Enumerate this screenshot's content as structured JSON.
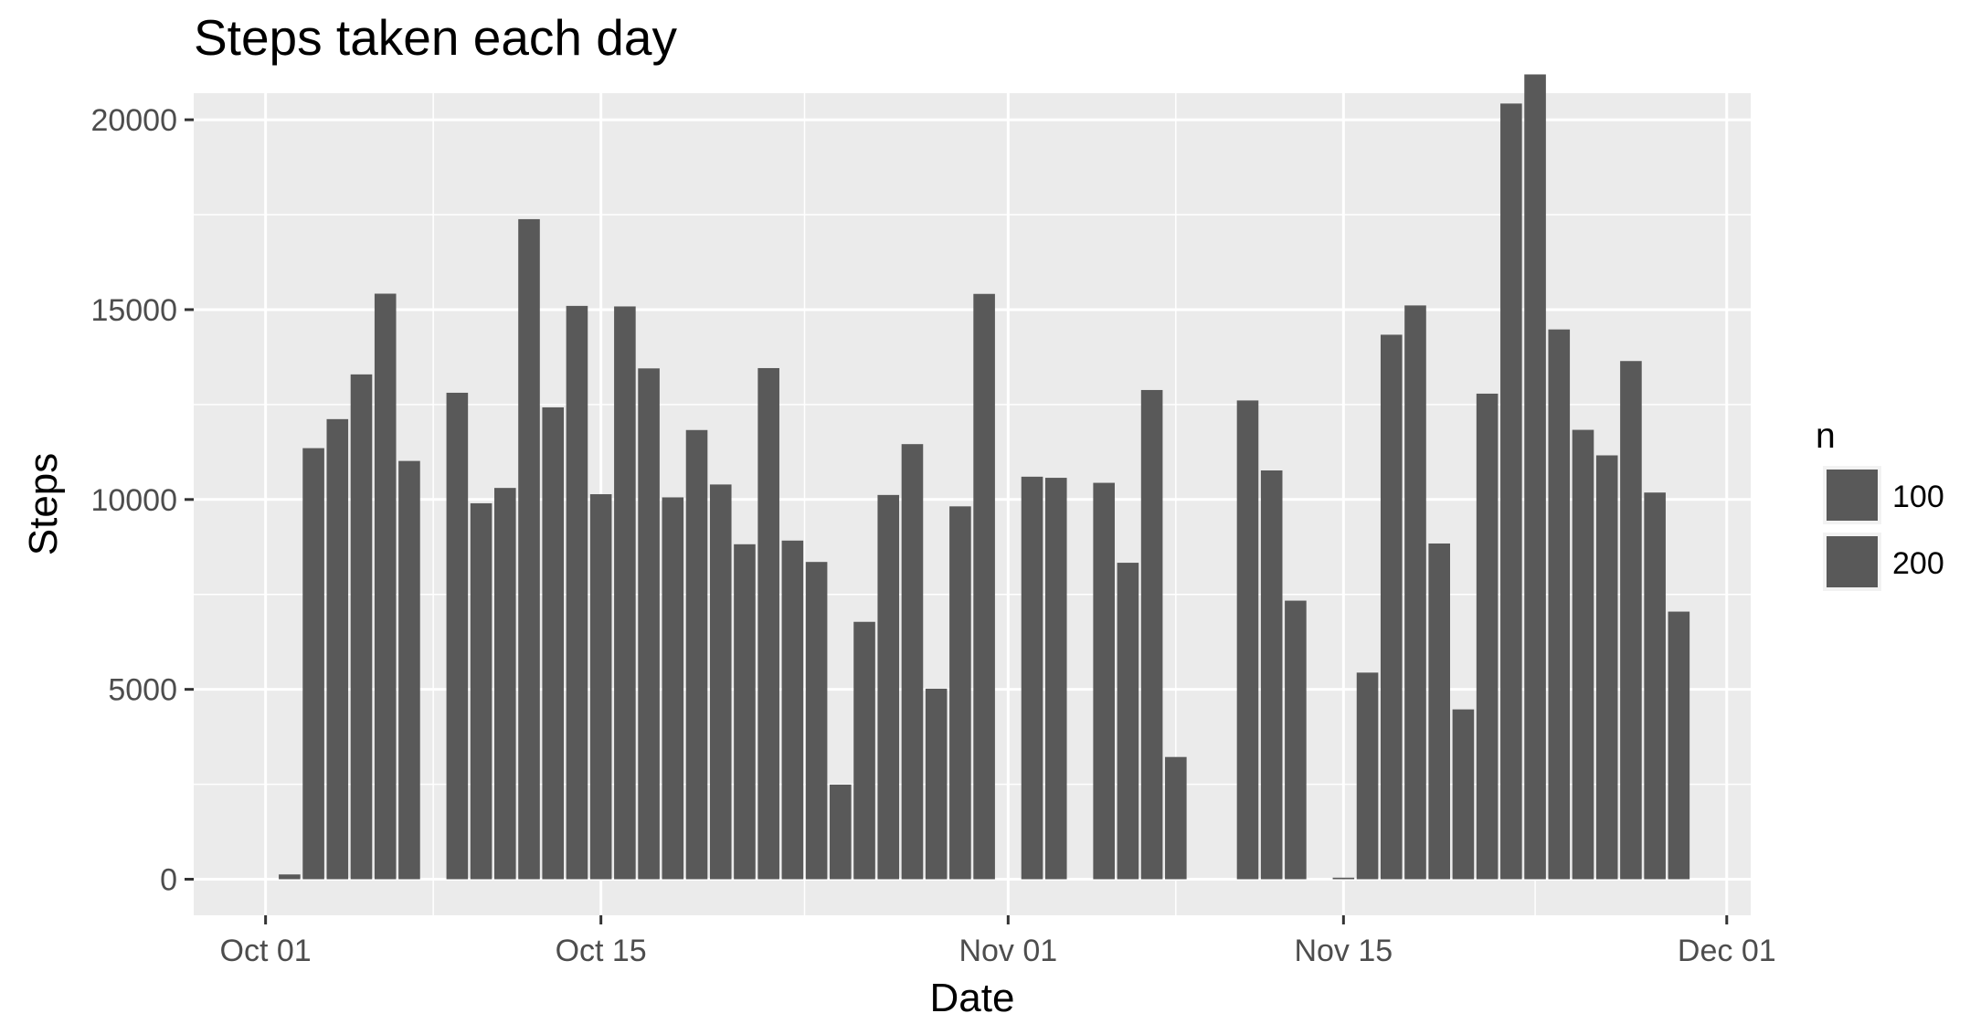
{
  "chart_data": {
    "type": "bar",
    "title": "Steps taken each day",
    "xlabel": "Date",
    "ylabel": "Steps",
    "x_ticks": [
      "Oct 01",
      "Oct 15",
      "Nov 01",
      "Nov 15",
      "Dec 01"
    ],
    "x_tick_dates": [
      "2012-10-01",
      "2012-10-15",
      "2012-11-01",
      "2012-11-15",
      "2012-12-01"
    ],
    "xlim": [
      "2012-09-28",
      "2012-12-02"
    ],
    "y_ticks": [
      0,
      5000,
      10000,
      15000,
      20000
    ],
    "ylim": [
      -950,
      20700
    ],
    "grid": true,
    "legend": {
      "title": "n",
      "position": "right",
      "entries": [
        {
          "label": "100",
          "color": "#595959"
        },
        {
          "label": "200",
          "color": "#595959"
        }
      ]
    },
    "bar_color": "#595959",
    "panel_color": "#ebebeb",
    "grid_color": "#ffffff",
    "dates": [
      "2012-10-02",
      "2012-10-03",
      "2012-10-04",
      "2012-10-05",
      "2012-10-06",
      "2012-10-07",
      "2012-10-09",
      "2012-10-10",
      "2012-10-11",
      "2012-10-12",
      "2012-10-13",
      "2012-10-14",
      "2012-10-15",
      "2012-10-16",
      "2012-10-17",
      "2012-10-18",
      "2012-10-19",
      "2012-10-20",
      "2012-10-21",
      "2012-10-22",
      "2012-10-23",
      "2012-10-24",
      "2012-10-25",
      "2012-10-26",
      "2012-10-27",
      "2012-10-28",
      "2012-10-29",
      "2012-10-30",
      "2012-10-31",
      "2012-11-02",
      "2012-11-03",
      "2012-11-05",
      "2012-11-06",
      "2012-11-07",
      "2012-11-08",
      "2012-11-11",
      "2012-11-12",
      "2012-11-13",
      "2012-11-15",
      "2012-11-16",
      "2012-11-17",
      "2012-11-18",
      "2012-11-19",
      "2012-11-20",
      "2012-11-21",
      "2012-11-22",
      "2012-11-23",
      "2012-11-24",
      "2012-11-25",
      "2012-11-26",
      "2012-11-27",
      "2012-11-28",
      "2012-11-29"
    ],
    "values": [
      126,
      11352,
      12116,
      13294,
      15420,
      11015,
      12811,
      9900,
      10304,
      17382,
      12426,
      15098,
      10139,
      15084,
      13452,
      10056,
      11829,
      10395,
      8821,
      13460,
      8918,
      8355,
      2492,
      6778,
      10119,
      11458,
      5018,
      9819,
      15414,
      10600,
      10571,
      10439,
      8334,
      12883,
      3219,
      12608,
      10765,
      7336,
      41,
      5441,
      14339,
      15110,
      8841,
      4472,
      12787,
      20427,
      21194,
      14478,
      11834,
      11162,
      13646,
      10183,
      7047
    ]
  }
}
